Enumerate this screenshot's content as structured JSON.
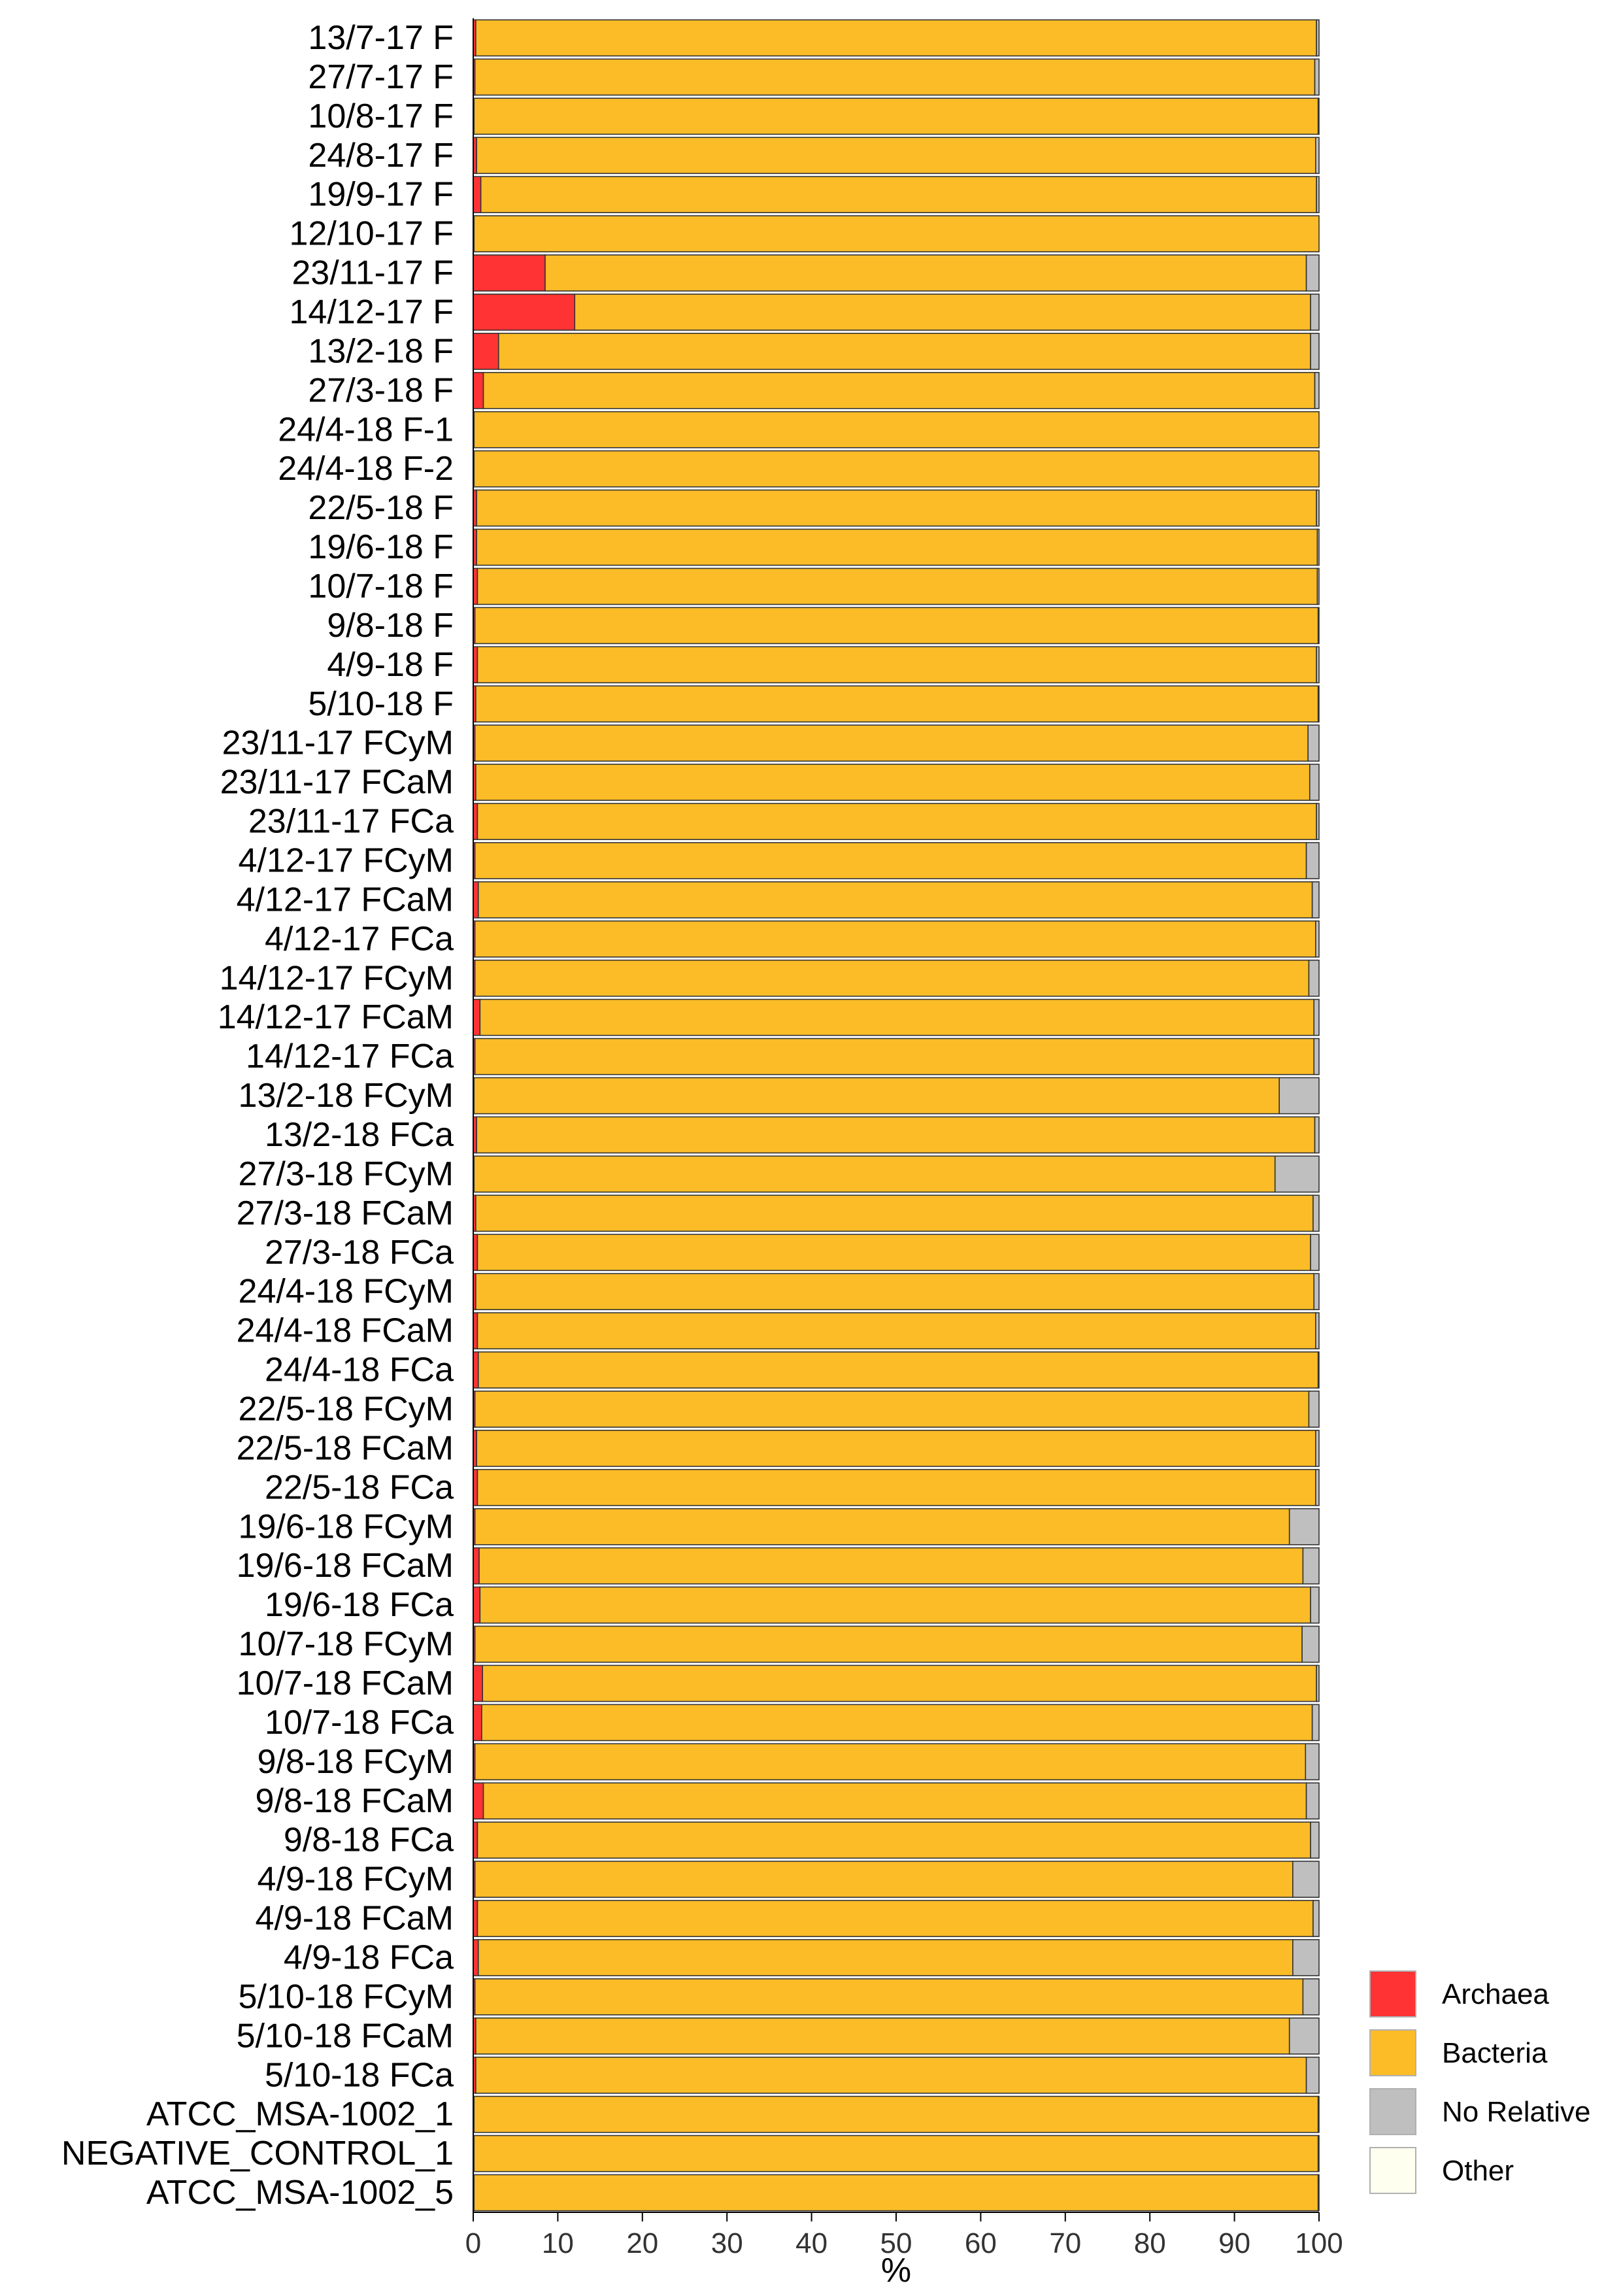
{
  "chart_data": {
    "type": "bar",
    "orientation": "horizontal",
    "stacked": true,
    "xlabel": "%",
    "ylabel": "",
    "xlim": [
      0,
      100
    ],
    "xticks": [
      0,
      10,
      20,
      30,
      40,
      50,
      60,
      70,
      80,
      90,
      100
    ],
    "grid": false,
    "legend_position": "bottom-right",
    "categories": [
      "13/7-17 F",
      "27/7-17 F",
      "10/8-17 F",
      "24/8-17 F",
      "19/9-17 F",
      "12/10-17 F",
      "23/11-17 F",
      "14/12-17 F",
      "13/2-18 F",
      "27/3-18 F",
      "24/4-18 F-1",
      "24/4-18 F-2",
      "22/5-18 F",
      "19/6-18 F",
      "10/7-18 F",
      "9/8-18 F",
      "4/9-18 F",
      "5/10-18 F",
      "23/11-17 FCyM",
      "23/11-17 FCaM",
      "23/11-17 FCa",
      "4/12-17 FCyM",
      "4/12-17 FCaM",
      "4/12-17 FCa",
      "14/12-17 FCyM",
      "14/12-17 FCaM",
      "14/12-17 FCa",
      "13/2-18 FCyM",
      "13/2-18 FCa",
      "27/3-18 FCyM",
      "27/3-18 FCaM",
      "27/3-18 FCa",
      "24/4-18 FCyM",
      "24/4-18 FCaM",
      "24/4-18 FCa",
      "22/5-18 FCyM",
      "22/5-18 FCaM",
      "22/5-18 FCa",
      "19/6-18 FCyM",
      "19/6-18 FCaM",
      "19/6-18 FCa",
      "10/7-18 FCyM",
      "10/7-18 FCaM",
      "10/7-18 FCa",
      "9/8-18 FCyM",
      "9/8-18 FCaM",
      "9/8-18 FCa",
      "4/9-18 FCyM",
      "4/9-18 FCaM",
      "4/9-18 FCa",
      "5/10-18 FCyM",
      "5/10-18 FCaM",
      "5/10-18 FCa",
      "ATCC_MSA-1002_1",
      "NEGATIVE_CONTROL_1",
      "ATCC_MSA-1002_5"
    ],
    "series": [
      {
        "name": "Archaea",
        "color": "#FF3333",
        "values": [
          0.3,
          0.2,
          0.1,
          0.4,
          0.9,
          0.1,
          8.5,
          12.0,
          3.0,
          1.2,
          0.1,
          0.1,
          0.4,
          0.4,
          0.5,
          0.2,
          0.5,
          0.3,
          0.2,
          0.3,
          0.5,
          0.2,
          0.6,
          0.2,
          0.2,
          0.8,
          0.2,
          0.1,
          0.4,
          0.1,
          0.3,
          0.5,
          0.3,
          0.5,
          0.6,
          0.2,
          0.4,
          0.5,
          0.2,
          0.7,
          0.8,
          0.2,
          1.1,
          1.0,
          0.2,
          1.2,
          0.5,
          0.2,
          0.5,
          0.6,
          0.2,
          0.3,
          0.3,
          0.1,
          0.1,
          0.1
        ]
      },
      {
        "name": "Bacteria",
        "color": "#FBBC27",
        "values": [
          99.4,
          99.3,
          99.8,
          99.2,
          98.8,
          99.9,
          90.0,
          87.0,
          96.0,
          98.3,
          99.9,
          99.9,
          99.3,
          99.4,
          99.3,
          99.7,
          99.2,
          99.6,
          98.5,
          98.6,
          99.2,
          98.3,
          98.6,
          99.4,
          98.6,
          98.6,
          99.2,
          95.2,
          99.1,
          94.7,
          99.0,
          98.5,
          99.1,
          99.1,
          99.3,
          98.6,
          99.2,
          99.1,
          96.3,
          97.4,
          98.2,
          97.8,
          98.6,
          98.2,
          98.2,
          97.3,
          98.5,
          96.7,
          98.8,
          96.3,
          97.9,
          96.2,
          98.2,
          99.8,
          99.8,
          99.8
        ]
      },
      {
        "name": "No Relative",
        "color": "#BFBFBF",
        "values": [
          0.3,
          0.5,
          0.1,
          0.4,
          0.3,
          0.0,
          1.5,
          1.0,
          1.0,
          0.5,
          0.0,
          0.0,
          0.3,
          0.2,
          0.2,
          0.1,
          0.3,
          0.1,
          1.3,
          1.1,
          0.3,
          1.5,
          0.8,
          0.4,
          1.2,
          0.6,
          0.6,
          4.7,
          0.5,
          5.2,
          0.7,
          1.0,
          0.6,
          0.4,
          0.1,
          1.2,
          0.4,
          0.4,
          3.5,
          1.9,
          1.0,
          2.0,
          0.3,
          0.8,
          1.6,
          1.5,
          1.0,
          3.1,
          0.7,
          3.1,
          1.9,
          3.5,
          1.5,
          0.1,
          0.1,
          0.1
        ]
      },
      {
        "name": "Other",
        "color": "#FFFFF0",
        "values": [
          0,
          0,
          0,
          0,
          0,
          0,
          0,
          0,
          0,
          0,
          0,
          0,
          0,
          0,
          0,
          0,
          0,
          0,
          0,
          0,
          0,
          0,
          0,
          0,
          0,
          0,
          0,
          0,
          0,
          0,
          0,
          0,
          0,
          0,
          0,
          0,
          0,
          0,
          0,
          0,
          0,
          0,
          0,
          0,
          0,
          0,
          0,
          0,
          0,
          0,
          0,
          0,
          0,
          0,
          0,
          0
        ]
      }
    ]
  }
}
